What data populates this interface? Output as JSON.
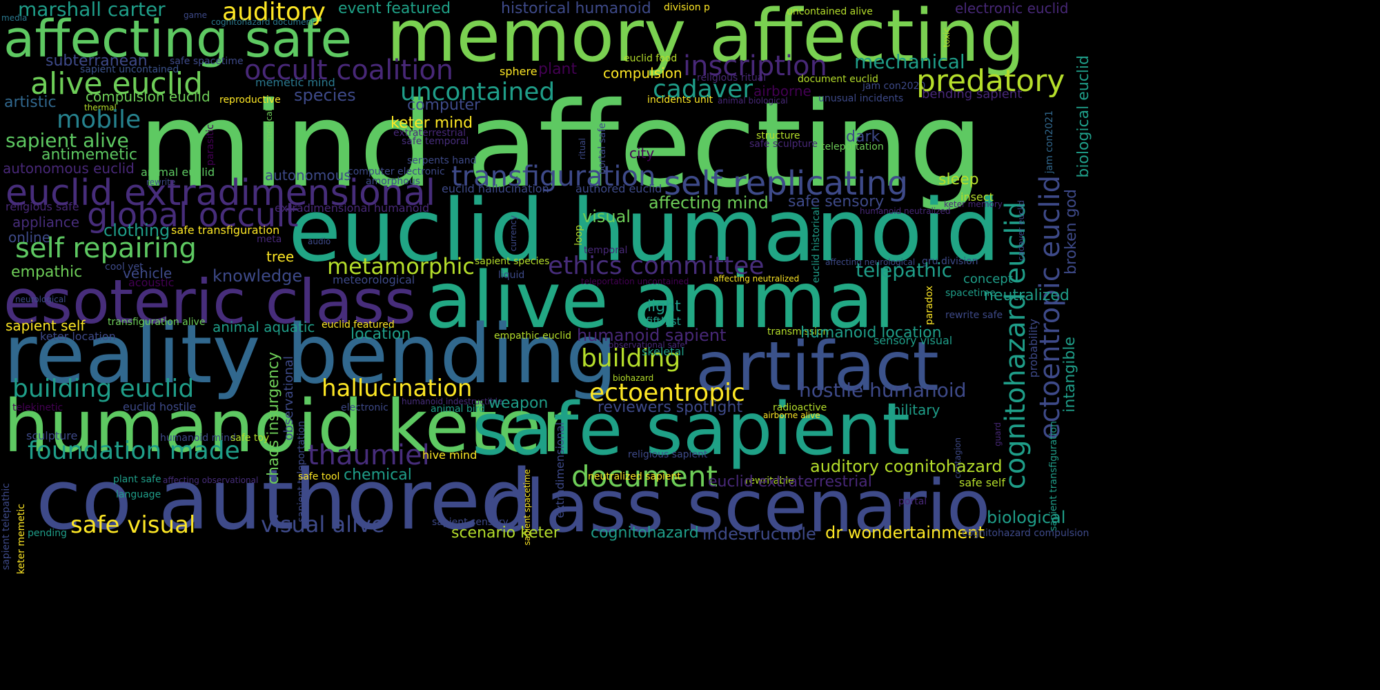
{
  "colors": {
    "background": "#000000",
    "palette": [
      "#440154",
      "#482878",
      "#3e4989",
      "#31688e",
      "#26828e",
      "#1f9e89",
      "#35b779",
      "#6ece58",
      "#b5de2b",
      "#fde725"
    ]
  },
  "words": [
    {
      "text": "mind",
      "color": "#5ec962"
    },
    {
      "text": "affecting",
      "color": "#5ec962"
    },
    {
      "text": "memory affecting",
      "color": "#7ad151"
    },
    {
      "text": "affecting safe",
      "color": "#5ec962"
    },
    {
      "text": "euclid humanoid",
      "color": "#21a585"
    },
    {
      "text": "alive animal",
      "color": "#22a884"
    },
    {
      "text": "esoteric class",
      "color": "#472d7b"
    },
    {
      "text": "reality bending",
      "color": "#31688e"
    },
    {
      "text": "artifact",
      "color": "#3b528b"
    },
    {
      "text": "humanoid keter",
      "color": "#5ec962"
    },
    {
      "text": "safe sapient",
      "color": "#1fa187"
    },
    {
      "text": "co authored",
      "color": "#3e4a89"
    },
    {
      "text": "class scenario",
      "color": "#3e4a89"
    },
    {
      "text": "marshall carter",
      "color": "#1f9e89"
    },
    {
      "text": "auditory",
      "color": "#fde725"
    },
    {
      "text": "event featured",
      "color": "#1fa187"
    },
    {
      "text": "historical humanoid",
      "color": "#3e4a89"
    },
    {
      "text": "division p",
      "color": "#fde725"
    },
    {
      "text": "uncontained alive",
      "color": "#b5de2b"
    },
    {
      "text": "electronic euclid",
      "color": "#482878"
    },
    {
      "text": "media",
      "color": "#2a788e"
    },
    {
      "text": "game",
      "color": "#3e4a89"
    },
    {
      "text": "cognitohazard document",
      "color": "#2a788e"
    },
    {
      "text": "subterranean",
      "color": "#3e4a89"
    },
    {
      "text": "safe spacetime",
      "color": "#3e4a89"
    },
    {
      "text": "sapient uncontained",
      "color": "#3b528b"
    },
    {
      "text": "occult coalition",
      "color": "#482878"
    },
    {
      "text": "plant",
      "color": "#440154"
    },
    {
      "text": "sphere",
      "color": "#fde725"
    },
    {
      "text": "inscription",
      "color": "#482878"
    },
    {
      "text": "mechanical",
      "color": "#1f9e89"
    },
    {
      "text": "alive euclid",
      "color": "#6ece58"
    },
    {
      "text": "memetic mind",
      "color": "#2a788e"
    },
    {
      "text": "euclid food",
      "color": "#b5de2b"
    },
    {
      "text": "compulsion",
      "color": "#fde725"
    },
    {
      "text": "religious ritual",
      "color": "#482878"
    },
    {
      "text": "document euclid",
      "color": "#b5de2b"
    },
    {
      "text": "jam con2020",
      "color": "#3e4a89"
    },
    {
      "text": "predatory",
      "color": "#b5de2b"
    },
    {
      "text": "artistic",
      "color": "#31688e"
    },
    {
      "text": "compulsion euclid",
      "color": "#6ece58"
    },
    {
      "text": "species",
      "color": "#3e4a89"
    },
    {
      "text": "uncontained",
      "color": "#1f9e89"
    },
    {
      "text": "cadaver",
      "color": "#1f9e89"
    },
    {
      "text": "airborne",
      "color": "#440154"
    },
    {
      "text": "unusual incidents",
      "color": "#3e4a89"
    },
    {
      "text": "bending sapient",
      "color": "#482878"
    },
    {
      "text": "biological euclid",
      "color": "#1f9e89"
    },
    {
      "text": "thermal",
      "color": "#b5de2b"
    },
    {
      "text": "reproductive",
      "color": "#fde725"
    },
    {
      "text": "computer",
      "color": "#3e4a89"
    },
    {
      "text": "incidents unit",
      "color": "#fde725"
    },
    {
      "text": "animal biological",
      "color": "#482878"
    },
    {
      "text": "toxic",
      "color": "#b5de2b"
    },
    {
      "text": "mobile",
      "color": "#26828e"
    },
    {
      "text": "keter mind",
      "color": "#fde725"
    },
    {
      "text": "extraterrestrial",
      "color": "#482878"
    },
    {
      "text": "sapient alive",
      "color": "#5ec962"
    },
    {
      "text": "safe temporal",
      "color": "#472d7b"
    },
    {
      "text": "antimemetic",
      "color": "#5ec962"
    },
    {
      "text": "structure",
      "color": "#b5de2b"
    },
    {
      "text": "safe sculpture",
      "color": "#482878"
    },
    {
      "text": "dark",
      "color": "#3e4a89"
    },
    {
      "text": "teleportation",
      "color": "#6ece58"
    },
    {
      "text": "autonomous euclid",
      "color": "#482878"
    },
    {
      "text": "animal euclid",
      "color": "#5ec962"
    },
    {
      "text": "serpents hand",
      "color": "#3e4a89"
    },
    {
      "text": "city",
      "color": "#440154"
    },
    {
      "text": "parasitic",
      "color": "#440154"
    },
    {
      "text": "medical",
      "color": "#6ece58"
    },
    {
      "text": "ritual",
      "color": "#3e4a89"
    },
    {
      "text": "portal safe",
      "color": "#3e4a89"
    },
    {
      "text": "jam con2021",
      "color": "#31688e"
    },
    {
      "text": "rewrite",
      "color": "#3e4a89"
    },
    {
      "text": "amorphous",
      "color": "#3e4a89"
    },
    {
      "text": "computer electronic",
      "color": "#3e4a89"
    },
    {
      "text": "autonomous",
      "color": "#3e4a89"
    },
    {
      "text": "transfiguration",
      "color": "#3e4a89"
    },
    {
      "text": "self replicating",
      "color": "#3e4a89"
    },
    {
      "text": "sleep",
      "color": "#b5de2b"
    },
    {
      "text": "euclid extradimensional",
      "color": "#472d7b"
    },
    {
      "text": "euclid hallucination",
      "color": "#3e4a89"
    },
    {
      "text": "authored euclid",
      "color": "#3e4a89"
    },
    {
      "text": "insect",
      "color": "#b5de2b"
    },
    {
      "text": "keter memory",
      "color": "#482878"
    },
    {
      "text": "cognitohazard euclid",
      "color": "#1f9e89"
    },
    {
      "text": "ectoentropic euclid",
      "color": "#3e4a89"
    },
    {
      "text": "broken god",
      "color": "#3e4a89"
    },
    {
      "text": "religious safe",
      "color": "#482878"
    },
    {
      "text": "global occult",
      "color": "#472d7b"
    },
    {
      "text": "affecting mind",
      "color": "#6ece58"
    },
    {
      "text": "safe sensory",
      "color": "#3e4a89"
    },
    {
      "text": "humanoid neutralized",
      "color": "#482878"
    },
    {
      "text": "extradimensional humanoid",
      "color": "#482878"
    },
    {
      "text": "appliance",
      "color": "#472d7b"
    },
    {
      "text": "clothing",
      "color": "#1f9e89"
    },
    {
      "text": "visual",
      "color": "#6ece58"
    },
    {
      "text": "cadaver euclid",
      "color": "#3e4a89"
    },
    {
      "text": "online",
      "color": "#3e4a89"
    },
    {
      "text": "safe transfiguration",
      "color": "#fde725"
    },
    {
      "text": "meta",
      "color": "#482878"
    },
    {
      "text": "currency",
      "color": "#3e4a89"
    },
    {
      "text": "loop",
      "color": "#b5de2b"
    },
    {
      "text": "euclid historical",
      "color": "#1f9e89"
    },
    {
      "text": "audio",
      "color": "#3e4a89"
    },
    {
      "text": "self repairing",
      "color": "#5ec962"
    },
    {
      "text": "temporal",
      "color": "#482878"
    },
    {
      "text": "gru division",
      "color": "#3e4a89"
    },
    {
      "text": "tree",
      "color": "#fde725"
    },
    {
      "text": "metamorphic",
      "color": "#b5de2b"
    },
    {
      "text": "ethics committee",
      "color": "#472d7b"
    },
    {
      "text": "affecting neurological",
      "color": "#3e4a89"
    },
    {
      "text": "telepathic",
      "color": "#1f9e89"
    },
    {
      "text": "empathic",
      "color": "#6ece58"
    },
    {
      "text": "cool yet",
      "color": "#3e4a89"
    },
    {
      "text": "sapient species",
      "color": "#b5de2b"
    },
    {
      "text": "vehicle",
      "color": "#3e4a89"
    },
    {
      "text": "acoustic",
      "color": "#440154"
    },
    {
      "text": "knowledge",
      "color": "#3e4a89"
    },
    {
      "text": "liquid",
      "color": "#3e4a89"
    },
    {
      "text": "meteorological",
      "color": "#3e4a89"
    },
    {
      "text": "teleportation uncontained",
      "color": "#440154"
    },
    {
      "text": "affecting neutralized",
      "color": "#fde725"
    },
    {
      "text": "concept",
      "color": "#1f9e89"
    },
    {
      "text": "paradox",
      "color": "#fde725"
    },
    {
      "text": "spacetime",
      "color": "#1f9e89"
    },
    {
      "text": "neutralized",
      "color": "#1f9e89"
    },
    {
      "text": "neurological",
      "color": "#3e4a89"
    },
    {
      "text": "light",
      "color": "#1f9e89"
    },
    {
      "text": "probability",
      "color": "#3e4a89"
    },
    {
      "text": "fifthist",
      "color": "#1f9e89"
    },
    {
      "text": "rewrite safe",
      "color": "#3e4a89"
    },
    {
      "text": "sapient self",
      "color": "#fde725"
    },
    {
      "text": "transfiguration alive",
      "color": "#6ece58"
    },
    {
      "text": "animal aquatic",
      "color": "#1f9e89"
    },
    {
      "text": "euclid featured",
      "color": "#fde725"
    },
    {
      "text": "humanoid sapient",
      "color": "#482878"
    },
    {
      "text": "transmission",
      "color": "#b5de2b"
    },
    {
      "text": "humanoid location",
      "color": "#1f9e89"
    },
    {
      "text": "keter location",
      "color": "#3e4a89"
    },
    {
      "text": "location",
      "color": "#1f9e89"
    },
    {
      "text": "empathic euclid",
      "color": "#b5de2b"
    },
    {
      "text": "observational safe",
      "color": "#482878"
    },
    {
      "text": "sensory visual",
      "color": "#1f9e89"
    },
    {
      "text": "intangible",
      "color": "#1f9e89"
    },
    {
      "text": "building",
      "color": "#b5de2b"
    },
    {
      "text": "skeletal",
      "color": "#1f9e89"
    },
    {
      "text": "biohazard",
      "color": "#b5de2b"
    },
    {
      "text": "building euclid",
      "color": "#1f9e89"
    },
    {
      "text": "hallucination",
      "color": "#fde725"
    },
    {
      "text": "ectoentropic",
      "color": "#fde725"
    },
    {
      "text": "hostile humanoid",
      "color": "#3e4a89"
    },
    {
      "text": "observational",
      "color": "#3e4a89"
    },
    {
      "text": "chaos insurgency",
      "color": "#6ece58"
    },
    {
      "text": "telekinetic",
      "color": "#440154"
    },
    {
      "text": "euclid hostile",
      "color": "#3e4a89"
    },
    {
      "text": "electronic",
      "color": "#3e4a89"
    },
    {
      "text": "humanoid indestructible",
      "color": "#472d7b"
    },
    {
      "text": "weapon",
      "color": "#1f9e89"
    },
    {
      "text": "animal bird",
      "color": "#1f9e89"
    },
    {
      "text": "reviewers spotlight",
      "color": "#3e4a89"
    },
    {
      "text": "radioactive",
      "color": "#b5de2b"
    },
    {
      "text": "military",
      "color": "#1f9e89"
    },
    {
      "text": "airborne alive",
      "color": "#fde725"
    },
    {
      "text": "sapient teleportation",
      "color": "#3e4a89"
    },
    {
      "text": "sapient transfiguration",
      "color": "#1f9e89"
    },
    {
      "text": "guard",
      "color": "#482878"
    },
    {
      "text": "contagion",
      "color": "#3e4a89"
    },
    {
      "text": "sculpture",
      "color": "#3e4a89"
    },
    {
      "text": "humanoid mind",
      "color": "#3e4a89"
    },
    {
      "text": "safe toy",
      "color": "#b5de2b"
    },
    {
      "text": "foundation made",
      "color": "#1f9e89"
    },
    {
      "text": "thaumiel",
      "color": "#472d7b"
    },
    {
      "text": "hive mind",
      "color": "#fde725"
    },
    {
      "text": "extradimensional",
      "color": "#3e4a89"
    },
    {
      "text": "sapient spacetime",
      "color": "#fde725"
    },
    {
      "text": "religious sapient",
      "color": "#3e4a89"
    },
    {
      "text": "auditory cognitohazard",
      "color": "#b5de2b"
    },
    {
      "text": "document",
      "color": "#6ece58"
    },
    {
      "text": "plant safe",
      "color": "#1f9e89"
    },
    {
      "text": "affecting observational",
      "color": "#472d7b"
    },
    {
      "text": "chemical",
      "color": "#1f9e89"
    },
    {
      "text": "safe tool",
      "color": "#fde725"
    },
    {
      "text": "neutralized sapient",
      "color": "#fde725"
    },
    {
      "text": "rewritable",
      "color": "#b5de2b"
    },
    {
      "text": "euclid extraterrestrial",
      "color": "#482878"
    },
    {
      "text": "safe self",
      "color": "#b5de2b"
    },
    {
      "text": "sapient telepathic",
      "color": "#3e4a89"
    },
    {
      "text": "language",
      "color": "#1f9e89"
    },
    {
      "text": "portal",
      "color": "#482878"
    },
    {
      "text": "biological",
      "color": "#1f9e89"
    },
    {
      "text": "keter memetic",
      "color": "#fde725"
    },
    {
      "text": "safe visual",
      "color": "#fde725"
    },
    {
      "text": "visual alive",
      "color": "#3e4a89"
    },
    {
      "text": "sapient sensory",
      "color": "#3e4a89"
    },
    {
      "text": "pending",
      "color": "#1f9e89"
    },
    {
      "text": "scenario keter",
      "color": "#b5de2b"
    },
    {
      "text": "cognitohazard",
      "color": "#1f9e89"
    },
    {
      "text": "indestructible",
      "color": "#3e4a89"
    },
    {
      "text": "dr wondertainment",
      "color": "#fde725"
    },
    {
      "text": "cognitohazard compulsion",
      "color": "#3e4a89"
    }
  ]
}
